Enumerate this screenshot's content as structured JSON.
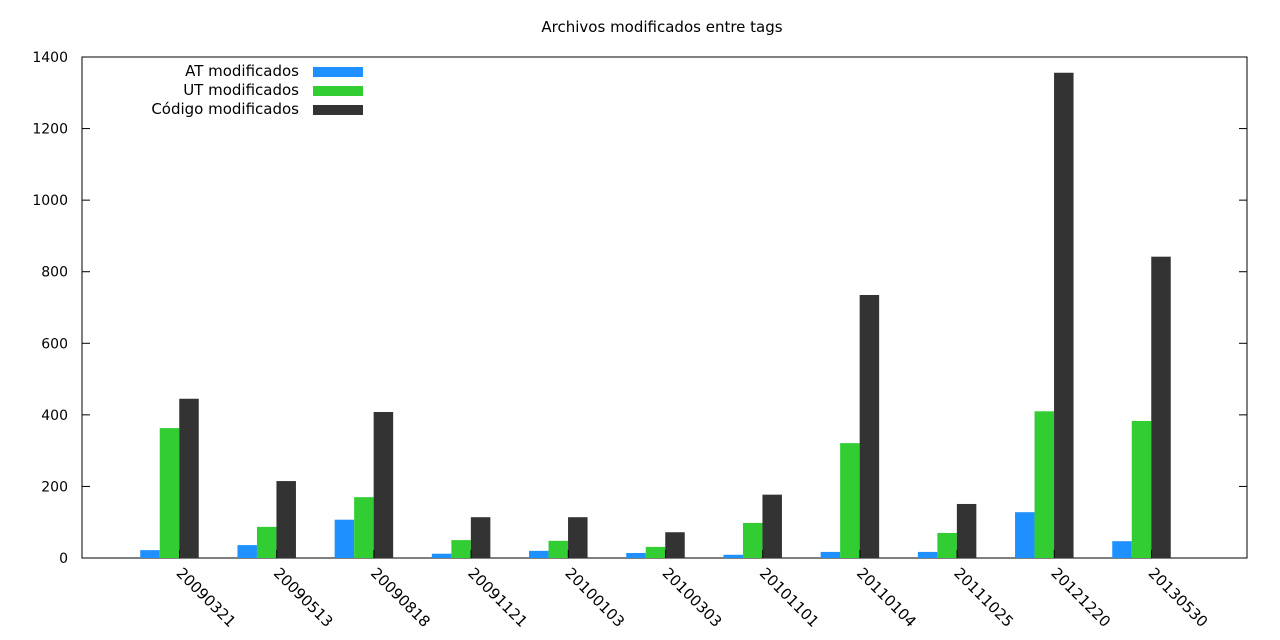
{
  "chart_data": {
    "type": "bar",
    "title": "Archivos modificados entre tags",
    "xlabel": "",
    "ylabel": "",
    "ylim": [
      0,
      1400
    ],
    "yticks": [
      0,
      200,
      400,
      600,
      800,
      1000,
      1200,
      1400
    ],
    "categories": [
      "20090321",
      "20090513",
      "20090818",
      "20091121",
      "20100103",
      "20100303",
      "20101101",
      "20110104",
      "20111025",
      "20121220",
      "20130530"
    ],
    "legend_position": "top-left",
    "grid": false,
    "series": [
      {
        "name": "AT modificados",
        "color": "#1e90ff",
        "values": [
          22,
          36,
          107,
          12,
          20,
          14,
          9,
          17,
          17,
          128,
          47
        ]
      },
      {
        "name": "UT modificados",
        "color": "#32cd32",
        "values": [
          363,
          87,
          170,
          50,
          48,
          31,
          98,
          321,
          70,
          410,
          383
        ]
      },
      {
        "name": "Código modificados",
        "color": "#333333",
        "values": [
          445,
          215,
          408,
          114,
          114,
          72,
          177,
          735,
          151,
          1356,
          842
        ]
      }
    ]
  }
}
